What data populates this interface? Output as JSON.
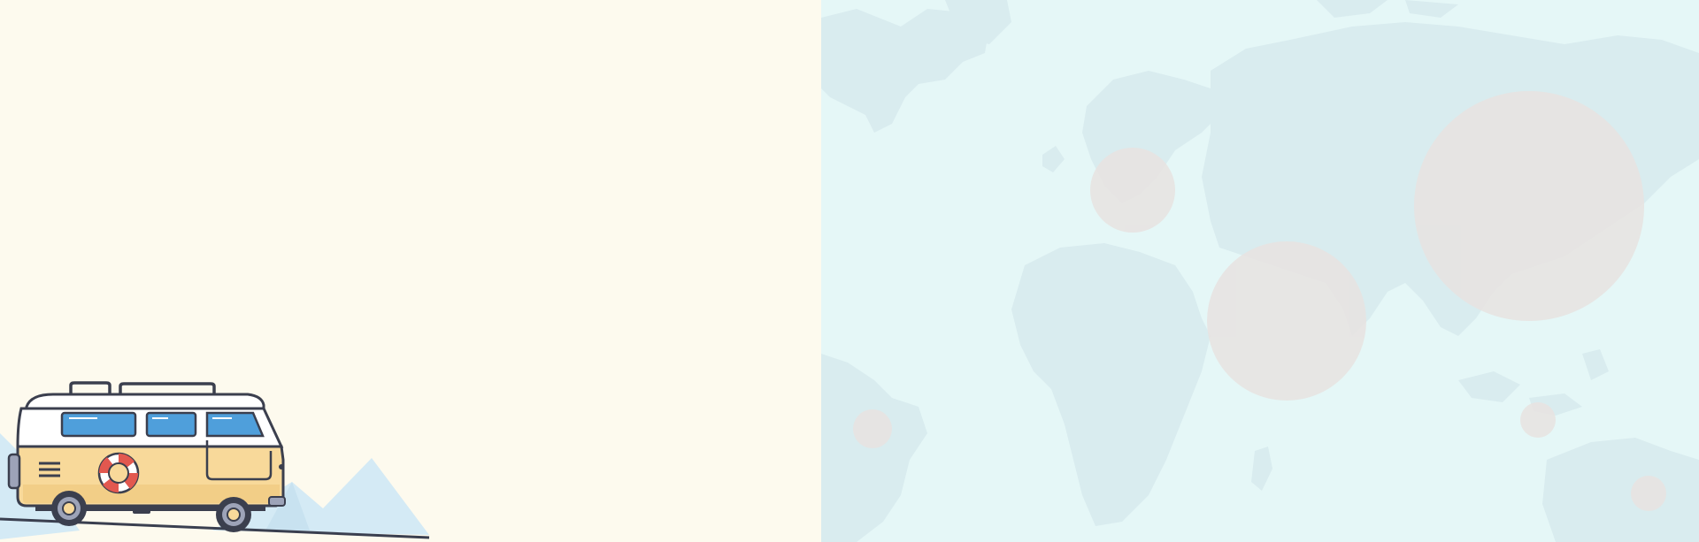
{
  "colors": {
    "left_background": "#FDFAEE",
    "right_background": "#E5F7F7",
    "landmass": "#D9ECEF",
    "bubble": "#E8E3E1",
    "mountain": "#D4EAF5",
    "road": "#3A3F4F",
    "van_cream": "#F8D99A",
    "van_white": "#FFFFFF",
    "van_outline": "#3B3F4E",
    "van_window": "#4F9FDB",
    "life_ring_red": "#E2584F",
    "wheel_grey": "#9DA3B8"
  },
  "illustration": {
    "vehicle_icon": "camper-van-icon",
    "decoration_icon": "life-ring-icon",
    "background_icon": "world-map-icon"
  }
}
